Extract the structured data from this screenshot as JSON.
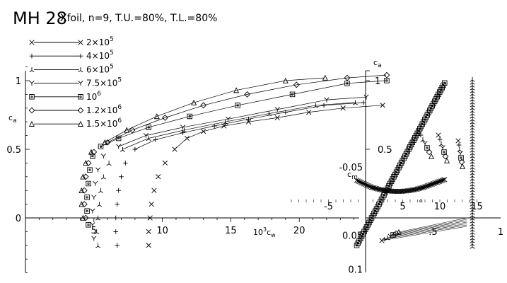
{
  "title": "MH 28",
  "subtitle": "Xfoil, n=9, T.U.=80%, T.L.=80%",
  "chart_data": [
    {
      "type": "scatter",
      "panel": "drag-polar",
      "xlabel_base": "10",
      "xlabel_exp": "3",
      "xlabel_sym": "c",
      "xlabel_sub": "w",
      "ylabel_sym": "c",
      "ylabel_sub": "a",
      "xticks": [
        {
          "v": 5,
          "label": "5"
        },
        {
          "v": 10,
          "label": "10"
        },
        {
          "v": 15,
          "label": "15"
        },
        {
          "v": 20,
          "label": "20"
        }
      ],
      "yticks": [
        {
          "v": 0,
          "label": "0"
        },
        {
          "v": 0.5,
          "label": "0.5"
        },
        {
          "v": 1,
          "label": "1"
        }
      ],
      "xlim": [
        0,
        25
      ],
      "ylim": [
        -0.4,
        1.1
      ],
      "series": [
        {
          "name": "2×10⁵",
          "mant": "2×10",
          "exp": "5",
          "marker": "x",
          "x": [
            9.0,
            9.0,
            9.1,
            9.2,
            9.4,
            9.7,
            10.2,
            10.9,
            11.8,
            13.0,
            14.5,
            16.3,
            18.4,
            20.7,
            23.2
          ],
          "y": [
            -0.2,
            -0.1,
            0.0,
            0.1,
            0.2,
            0.3,
            0.4,
            0.5,
            0.58,
            0.63,
            0.67,
            0.7,
            0.73,
            0.77,
            0.8
          ]
        },
        {
          "name": "4×10⁵",
          "mant": "4×10",
          "exp": "5",
          "marker": "+",
          "x": [
            6.7,
            6.6,
            6.6,
            6.7,
            6.8,
            7.0,
            7.3,
            8.0,
            9.5,
            11.5,
            13.8,
            16.3,
            19.0,
            21.8
          ],
          "y": [
            -0.2,
            -0.1,
            0.0,
            0.1,
            0.2,
            0.3,
            0.4,
            0.5,
            0.57,
            0.62,
            0.67,
            0.72,
            0.77,
            0.82
          ]
        },
        {
          "name": "6×10⁵",
          "mant": "6×10",
          "exp": "5",
          "marker": "tri",
          "x": [
            5.3,
            5.2,
            5.3,
            5.4,
            5.5,
            5.7,
            6.1,
            7.1,
            9.0,
            11.6,
            14.6,
            17.8,
            21.2
          ],
          "y": [
            -0.2,
            -0.1,
            0.0,
            0.1,
            0.2,
            0.3,
            0.4,
            0.5,
            0.58,
            0.64,
            0.7,
            0.76,
            0.82
          ]
        },
        {
          "name": "7.5×10⁵",
          "mant": "7.5×10",
          "exp": "5",
          "marker": "y",
          "x": [
            5.0,
            4.9,
            4.9,
            5.0,
            5.1,
            5.3,
            5.7,
            6.8,
            8.8,
            11.5,
            14.8,
            18.4,
            22.0
          ],
          "y": [
            -0.15,
            -0.05,
            0.05,
            0.15,
            0.25,
            0.35,
            0.45,
            0.52,
            0.6,
            0.66,
            0.72,
            0.79,
            0.86
          ]
        },
        {
          "name": "10⁶",
          "mant": "10",
          "exp": "6",
          "marker": "sq",
          "x": [
            4.6,
            4.5,
            4.5,
            4.6,
            4.7,
            4.9,
            5.5,
            6.8,
            9.0,
            12.0,
            15.5,
            19.5,
            23.5
          ],
          "y": [
            -0.05,
            0.05,
            0.15,
            0.25,
            0.35,
            0.45,
            0.52,
            0.58,
            0.66,
            0.74,
            0.82,
            0.9,
            0.98
          ]
        },
        {
          "name": "1.2×10⁶",
          "mant": "1.2×10",
          "exp": "6",
          "marker": "dia",
          "x": [
            4.4,
            4.3,
            4.3,
            4.4,
            4.6,
            5.0,
            6.0,
            7.8,
            10.2,
            13.0,
            16.2,
            19.8,
            23.5
          ],
          "y": [
            0.0,
            0.1,
            0.2,
            0.3,
            0.4,
            0.48,
            0.55,
            0.64,
            0.73,
            0.82,
            0.9,
            0.97,
            1.02
          ]
        },
        {
          "name": "1.5×10⁶",
          "mant": "1.5×10",
          "exp": "6",
          "marker": "tri2",
          "x": [
            4.2,
            4.1,
            4.1,
            4.2,
            4.4,
            4.8,
            5.8,
            7.4,
            9.6,
            12.3,
            15.4,
            19.0
          ],
          "y": [
            0.0,
            0.1,
            0.2,
            0.3,
            0.4,
            0.48,
            0.55,
            0.64,
            0.74,
            0.84,
            0.93,
            1.0
          ]
        }
      ]
    },
    {
      "type": "scatter",
      "panel": "alpha-polar",
      "ylabel_sym": "c",
      "ylabel_sub": "a",
      "cm_sym": "c",
      "cm_sub": "m",
      "xticks": [
        {
          "v": -5,
          "label": "-5"
        },
        {
          "v": 5,
          "label": "5"
        },
        {
          "v": 10,
          "label": "10"
        },
        {
          "v": 15,
          "label": "15"
        }
      ],
      "yticks": [
        {
          "v": 0.5,
          "label": "0.5"
        },
        {
          "v": 1,
          "label": "1"
        }
      ],
      "cmticks": [
        {
          "v": -0.05,
          "label": "-0.05"
        },
        {
          "v": 0.05,
          "label": "0.05"
        },
        {
          "v": 0.1,
          "label": "0.1"
        }
      ],
      "xlim": [
        -10,
        20
      ],
      "ylim": [
        -0.4,
        1.1
      ],
      "cl_alpha": [
        [
          -5,
          -0.2
        ],
        [
          -4,
          -0.1
        ],
        [
          -3,
          0.0
        ],
        [
          -2,
          0.1
        ],
        [
          -1,
          0.2
        ],
        [
          0,
          0.3
        ],
        [
          1,
          0.4
        ],
        [
          2,
          0.5
        ],
        [
          3,
          0.6
        ],
        [
          4,
          0.7
        ],
        [
          5,
          0.8
        ],
        [
          6,
          0.9
        ],
        [
          7,
          1.0
        ]
      ],
      "cm_alpha": [
        [
          -5,
          -0.03
        ],
        [
          -4,
          -0.025
        ],
        [
          -3,
          -0.02
        ],
        [
          -2,
          -0.017
        ],
        [
          -1,
          -0.015
        ],
        [
          0,
          -0.014
        ],
        [
          1,
          -0.014
        ],
        [
          2,
          -0.015
        ],
        [
          3,
          -0.017
        ],
        [
          4,
          -0.02
        ],
        [
          5,
          -0.024
        ],
        [
          6,
          -0.028
        ],
        [
          7,
          -0.032
        ]
      ]
    },
    {
      "type": "scatter",
      "panel": "xtr-polar",
      "xticks": [
        {
          "v": 0.5,
          "label": ".5"
        },
        {
          "v": 1,
          "label": "1"
        }
      ],
      "xlim": [
        0,
        1
      ]
    }
  ]
}
